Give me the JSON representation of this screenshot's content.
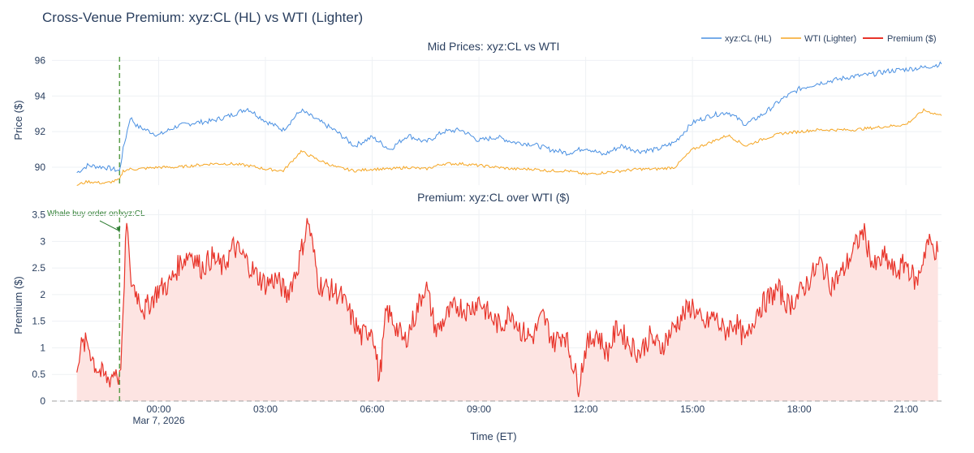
{
  "figure": {
    "title": "Cross-Venue Premium: xyz:CL (HL) vs WTI (Lighter)",
    "colors": {
      "hl": "#4a90e2",
      "wti": "#f5a623",
      "premium": "#e8342a",
      "premium_fill": "#fde4e2",
      "annotation": "#2e7d32",
      "text": "#2a3f5f",
      "grid": "#eef1f4"
    }
  },
  "legend": {
    "position": "top-right",
    "items": [
      {
        "name": "xyz:CL (HL)",
        "color": "#4a90e2"
      },
      {
        "name": "WTI (Lighter)",
        "color": "#f5a623"
      },
      {
        "name": "Premium ($)",
        "color": "#e8342a"
      }
    ]
  },
  "annotation": {
    "text": "Whale buy order on xyz:CL",
    "time_hours": -1.1
  },
  "xaxis": {
    "title": "Time (ET)",
    "range_hours": [
      -3.0,
      22.0
    ],
    "ticks": [
      {
        "h": 0,
        "label": "00:00",
        "sub": "Mar 7, 2026"
      },
      {
        "h": 3,
        "label": "03:00",
        "sub": ""
      },
      {
        "h": 6,
        "label": "06:00",
        "sub": ""
      },
      {
        "h": 9,
        "label": "09:00",
        "sub": ""
      },
      {
        "h": 12,
        "label": "12:00",
        "sub": ""
      },
      {
        "h": 15,
        "label": "15:00",
        "sub": ""
      },
      {
        "h": 18,
        "label": "18:00",
        "sub": ""
      },
      {
        "h": 21,
        "label": "21:00",
        "sub": ""
      }
    ]
  },
  "chart_data": [
    {
      "type": "line",
      "title": "Mid Prices: xyz:CL vs WTI",
      "xlabel": "Time (ET)",
      "ylabel": "Price ($)",
      "ylim": [
        89.0,
        96.2
      ],
      "yticks": [
        90,
        92,
        94,
        96
      ],
      "x": [
        -2.3,
        -2.0,
        -1.5,
        -1.1,
        -1.0,
        -0.8,
        -0.6,
        0.0,
        0.5,
        1.0,
        1.5,
        2.0,
        2.5,
        3.0,
        3.5,
        4.0,
        4.5,
        5.0,
        5.5,
        6.0,
        6.5,
        7.0,
        7.5,
        8.0,
        8.5,
        9.0,
        9.5,
        10.0,
        10.5,
        11.0,
        11.5,
        12.0,
        12.5,
        13.0,
        13.5,
        14.0,
        14.5,
        15.0,
        15.5,
        16.0,
        16.5,
        17.0,
        17.5,
        18.0,
        18.5,
        19.0,
        19.5,
        20.0,
        20.5,
        21.0,
        21.5,
        22.0
      ],
      "series": [
        {
          "name": "xyz:CL (HL)",
          "color": "#4a90e2",
          "values": [
            89.7,
            90.1,
            90.0,
            89.8,
            91.0,
            92.8,
            92.3,
            91.8,
            92.3,
            92.5,
            92.6,
            92.9,
            93.3,
            92.6,
            92.1,
            93.2,
            92.6,
            92.0,
            91.2,
            91.7,
            91.0,
            91.8,
            91.4,
            92.0,
            92.1,
            91.5,
            91.7,
            91.4,
            91.3,
            91.0,
            90.8,
            91.1,
            90.7,
            91.2,
            90.9,
            91.0,
            91.4,
            92.5,
            92.9,
            93.1,
            92.4,
            93.0,
            93.8,
            94.4,
            94.7,
            94.9,
            95.1,
            95.2,
            95.4,
            95.5,
            95.6,
            95.8
          ]
        },
        {
          "name": "WTI (Lighter)",
          "color": "#f5a623",
          "values": [
            89.0,
            89.2,
            89.1,
            89.3,
            89.8,
            89.9,
            89.9,
            90.0,
            90.0,
            90.1,
            90.2,
            90.2,
            90.1,
            89.9,
            89.8,
            90.9,
            90.4,
            90.0,
            89.8,
            89.9,
            89.9,
            90.0,
            89.9,
            90.2,
            90.2,
            90.1,
            90.0,
            89.9,
            89.9,
            89.8,
            89.8,
            89.6,
            89.7,
            89.8,
            89.9,
            89.9,
            90.0,
            91.0,
            91.4,
            91.8,
            91.2,
            91.6,
            91.9,
            92.0,
            92.1,
            92.1,
            92.1,
            92.2,
            92.3,
            92.4,
            93.2,
            92.9
          ]
        }
      ],
      "annotation": {
        "text": "",
        "x_hours": -1.1
      }
    },
    {
      "type": "area",
      "title": "Premium: xyz:CL over WTI ($)",
      "xlabel": "Time (ET)",
      "ylabel": "Premium ($)",
      "ylim": [
        0,
        3.6
      ],
      "yticks": [
        0,
        0.5,
        1,
        1.5,
        2,
        2.5,
        3,
        3.5
      ],
      "ytick_labels": [
        "0",
        "0.5",
        "1",
        "1.5",
        "2",
        "2.5",
        "3",
        "3.5"
      ],
      "x": [
        -2.3,
        -2.2,
        -2.0,
        -1.8,
        -1.6,
        -1.4,
        -1.2,
        -1.1,
        -1.0,
        -0.9,
        -0.8,
        -0.6,
        -0.4,
        -0.2,
        0.0,
        0.3,
        0.6,
        0.9,
        1.2,
        1.5,
        1.8,
        2.1,
        2.4,
        2.7,
        3.0,
        3.3,
        3.6,
        3.9,
        4.2,
        4.5,
        4.8,
        5.1,
        5.4,
        5.7,
        6.0,
        6.2,
        6.4,
        6.6,
        6.9,
        7.2,
        7.5,
        7.8,
        8.1,
        8.4,
        8.7,
        9.0,
        9.3,
        9.6,
        9.9,
        10.2,
        10.5,
        10.8,
        11.1,
        11.4,
        11.6,
        11.8,
        12.0,
        12.3,
        12.6,
        12.9,
        13.2,
        13.5,
        13.8,
        14.1,
        14.4,
        14.7,
        15.0,
        15.3,
        15.6,
        15.9,
        16.2,
        16.5,
        16.8,
        17.1,
        17.4,
        17.7,
        18.0,
        18.3,
        18.6,
        18.9,
        19.2,
        19.5,
        19.8,
        20.1,
        20.4,
        20.7,
        21.0,
        21.3,
        21.6,
        21.9
      ],
      "series": [
        {
          "name": "Premium ($)",
          "color": "#e8342a",
          "values": [
            0.7,
            1.0,
            1.1,
            0.7,
            0.5,
            0.4,
            0.6,
            0.4,
            1.5,
            3.5,
            2.3,
            2.0,
            1.7,
            1.9,
            2.1,
            2.2,
            2.6,
            2.8,
            2.5,
            2.7,
            2.5,
            2.9,
            2.7,
            2.4,
            2.2,
            2.3,
            2.0,
            2.5,
            3.4,
            2.2,
            2.1,
            2.0,
            1.6,
            1.2,
            1.4,
            0.4,
            1.7,
            1.5,
            1.1,
            1.6,
            2.2,
            1.3,
            1.6,
            1.8,
            1.7,
            1.9,
            1.6,
            1.4,
            1.7,
            1.3,
            1.2,
            1.6,
            1.1,
            1.3,
            0.8,
            0.3,
            1.0,
            1.3,
            0.9,
            1.4,
            1.1,
            0.9,
            1.2,
            1.0,
            1.3,
            1.6,
            1.8,
            1.4,
            1.6,
            1.3,
            1.5,
            1.1,
            1.7,
            1.9,
            2.1,
            1.8,
            2.0,
            2.3,
            2.6,
            2.2,
            2.4,
            2.8,
            3.2,
            2.5,
            2.7,
            2.4,
            2.6,
            2.2,
            3.0,
            2.8
          ]
        }
      ],
      "annotation": {
        "text": "Whale buy order on xyz:CL",
        "x_hours": -1.1
      }
    }
  ]
}
